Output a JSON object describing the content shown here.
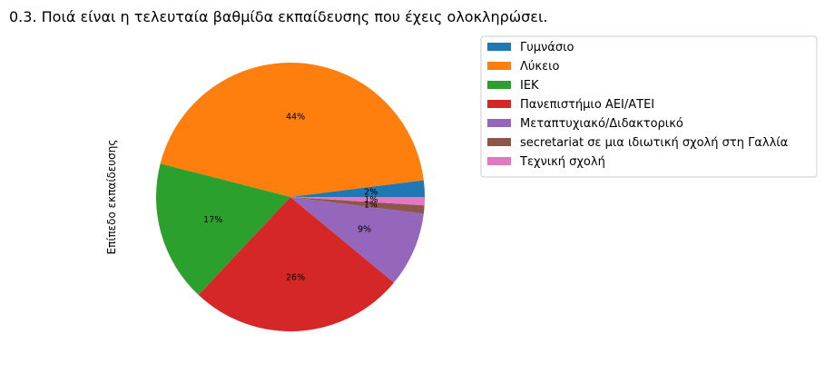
{
  "chart_data": {
    "type": "pie",
    "title": "0.3. Ποιά  είναι η τελευταία βαθμίδα εκπαίδευσης που έχεις ολοκληρώσει.",
    "ylabel": "Επίπεδο εκπαίδευσης",
    "legend_position": "top-right",
    "slices": [
      {
        "name": "Γυμνάσιο",
        "value": 2,
        "label": "2%",
        "color": "#1f77b4"
      },
      {
        "name": "Λύκειο",
        "value": 44,
        "label": "44%",
        "color": "#ff7f0e"
      },
      {
        "name": "ΙΕΚ",
        "value": 17,
        "label": "17%",
        "color": "#2ca02c"
      },
      {
        "name": "Πανεπιστήμιο ΑΕΙ/ΑΤΕΙ",
        "value": 26,
        "label": "26%",
        "color": "#d62728"
      },
      {
        "name": "Μεταπτυχιακό/Διδακτορικό",
        "value": 9,
        "label": "9%",
        "color": "#9467bd"
      },
      {
        "name": "secretariat σε μια ιδιωτική σχολή στη Γαλλία",
        "value": 1,
        "label": "1%",
        "color": "#8c564b"
      },
      {
        "name": "Τεχνική σχολή",
        "value": 1,
        "label": "1%",
        "color": "#e377c2"
      }
    ]
  }
}
